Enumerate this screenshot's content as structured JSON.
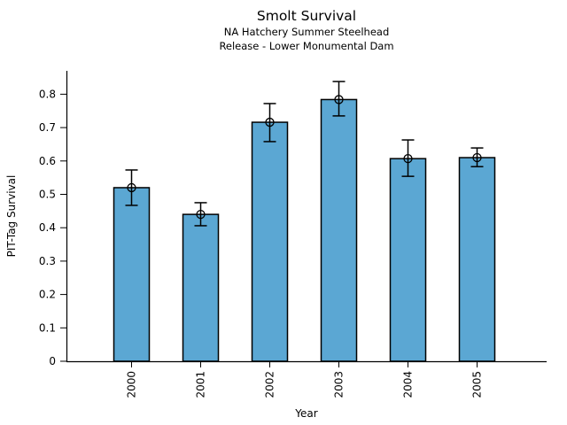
{
  "figure": {
    "background": "#ffffff"
  },
  "chart_data": {
    "type": "bar",
    "title": "Smolt Survival",
    "subtitle1": "NA Hatchery Summer Steelhead",
    "subtitle2": "Release - Lower Monumental Dam",
    "xlabel": "Year",
    "ylabel": "PIT-Tag Survival",
    "categories": [
      "2000",
      "2001",
      "2002",
      "2003",
      "2004",
      "2005"
    ],
    "values": [
      0.52,
      0.44,
      0.716,
      0.784,
      0.607,
      0.61
    ],
    "error_upper": [
      0.573,
      0.475,
      0.772,
      0.838,
      0.663,
      0.639
    ],
    "error_lower": [
      0.467,
      0.406,
      0.658,
      0.735,
      0.554,
      0.583
    ],
    "yticks": [
      0,
      0.1,
      0.2,
      0.3,
      0.4,
      0.5,
      0.6,
      0.7,
      0.8
    ],
    "ytick_labels": [
      "0",
      "0.1",
      "0.2",
      "0.3",
      "0.4",
      "0.5",
      "0.6",
      "0.7",
      "0.8"
    ],
    "ylim": [
      0,
      0.87
    ],
    "grid": false,
    "legend": null,
    "marker": "open-circle",
    "bar_color": "#5BA7D3",
    "bar_edge_color": "#000000",
    "axis_color": "#000000",
    "text_color": "#000000"
  }
}
